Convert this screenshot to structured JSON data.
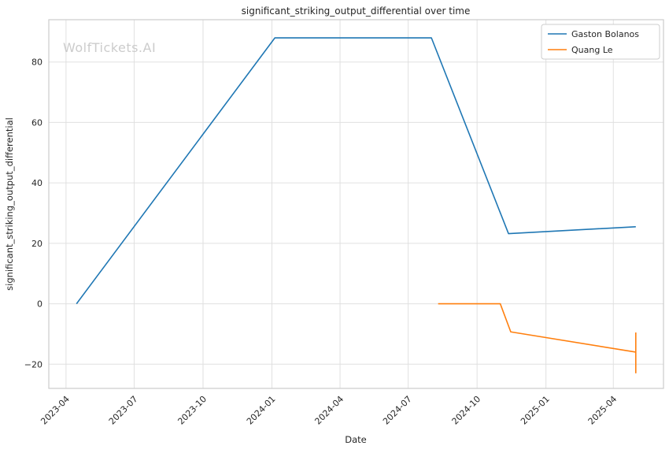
{
  "watermark": "WolfTickets.AI",
  "chart_data": {
    "type": "line",
    "title": "significant_striking_output_differential over time",
    "xlabel": "Date",
    "ylabel": "significant_striking_output_differential",
    "legend_position": "upper right",
    "grid": true,
    "xlim": [
      "2023-03-09",
      "2025-06-07"
    ],
    "ylim": [
      -28,
      94
    ],
    "x_ticks": [
      "2023-04",
      "2023-07",
      "2023-10",
      "2024-01",
      "2024-04",
      "2024-07",
      "2024-10",
      "2025-01",
      "2025-04"
    ],
    "y_ticks": [
      -20,
      0,
      20,
      40,
      60,
      80
    ],
    "series": [
      {
        "name": "Gaston Bolanos",
        "color": "#1f77b4",
        "points": [
          [
            "2023-04-15",
            0
          ],
          [
            "2024-01-05",
            88
          ],
          [
            "2024-08-01",
            88
          ],
          [
            "2024-11-12",
            23.2
          ],
          [
            "2025-05-01",
            25.5
          ]
        ]
      },
      {
        "name": "Quang Le",
        "color": "#ff7f0e",
        "points": [
          [
            "2024-08-10",
            0
          ],
          [
            "2024-11-01",
            0
          ],
          [
            "2024-11-15",
            -9.3
          ],
          [
            "2025-05-01",
            -16
          ]
        ],
        "error_bar": {
          "x": "2025-05-01",
          "low": -23,
          "high": -9.5
        }
      }
    ]
  }
}
